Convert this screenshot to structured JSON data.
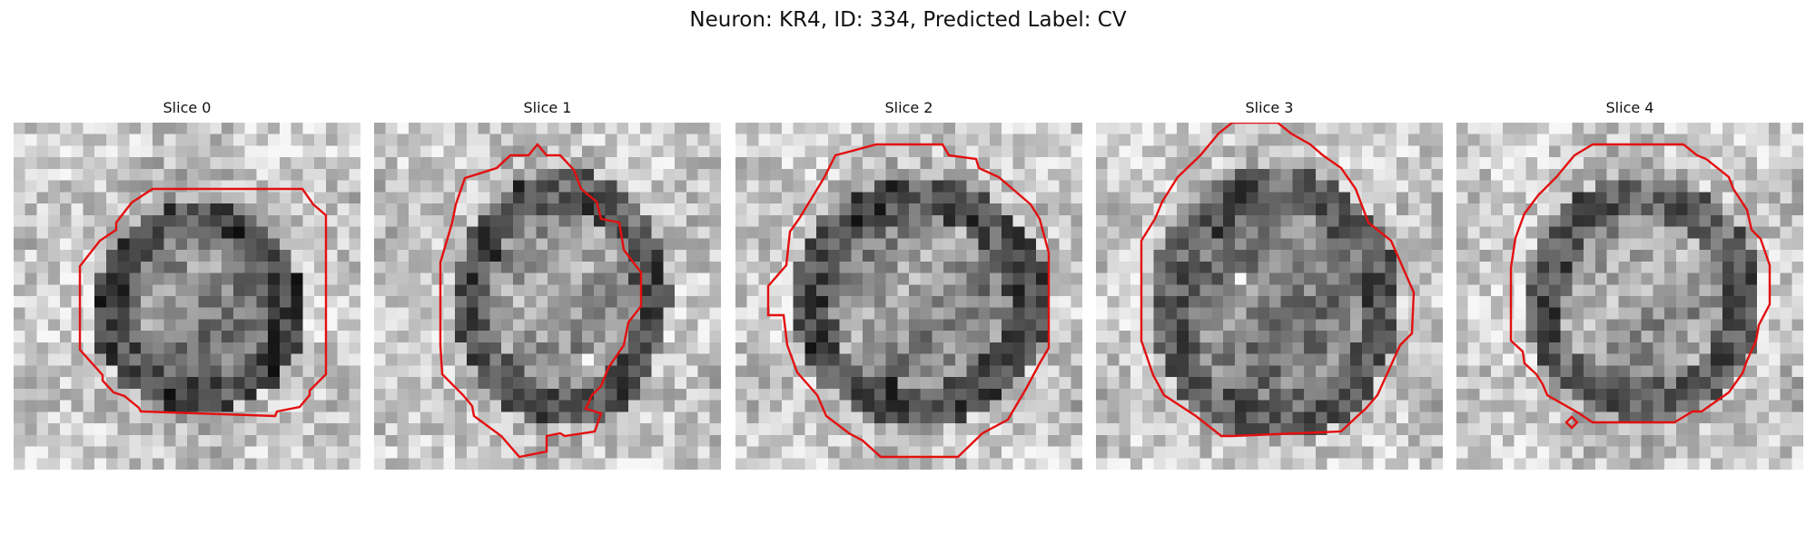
{
  "figure": {
    "title": "Neuron: KR4, ID: 334, Predicted Label: CV"
  },
  "panels": [
    {
      "title": "Slice 0"
    },
    {
      "title": "Slice 1"
    },
    {
      "title": "Slice 2"
    },
    {
      "title": "Slice 3"
    },
    {
      "title": "Slice 4"
    }
  ],
  "colors": {
    "contour": "#e31010",
    "background": "#ffffff"
  }
}
